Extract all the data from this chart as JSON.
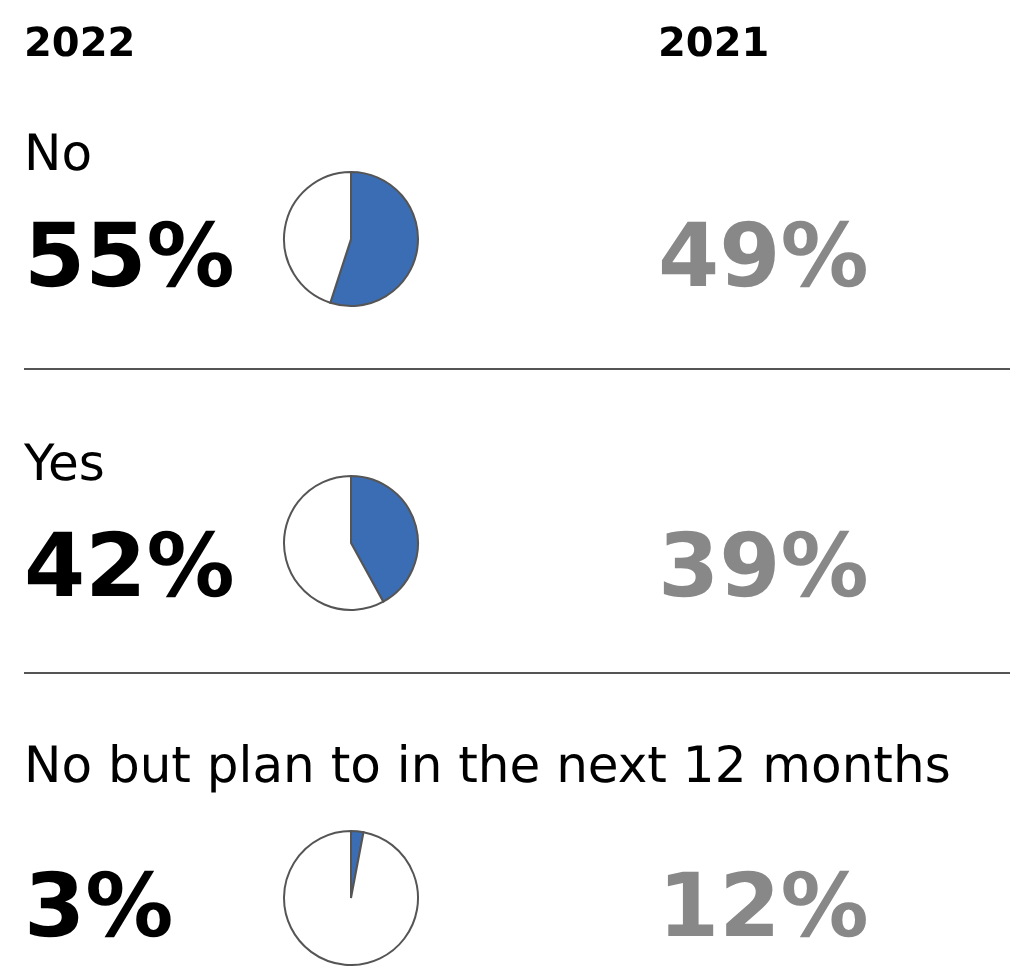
{
  "chart_data": [
    {
      "type": "other",
      "annotations": [
        "2022",
        "2021"
      ]
    },
    {
      "type": "pie",
      "title": "No",
      "categories": [
        null,
        null
      ],
      "values": [
        55,
        45
      ],
      "colors": [
        "#3b6db4",
        "#ffffff"
      ],
      "annotations": [
        "55%",
        "49%"
      ]
    },
    {
      "type": "pie",
      "title": "Yes",
      "categories": [
        null,
        null
      ],
      "values": [
        42,
        58
      ],
      "colors": [
        "#3b6db4",
        "#ffffff"
      ],
      "annotations": [
        "42%",
        "39%"
      ]
    },
    {
      "type": "pie",
      "title": "No but plan to in the next 12 months",
      "categories": [
        null,
        null
      ],
      "values": [
        3,
        97
      ],
      "colors": [
        "#3b6db4",
        "#ffffff"
      ],
      "annotations": [
        "3%",
        "12%"
      ]
    }
  ]
}
